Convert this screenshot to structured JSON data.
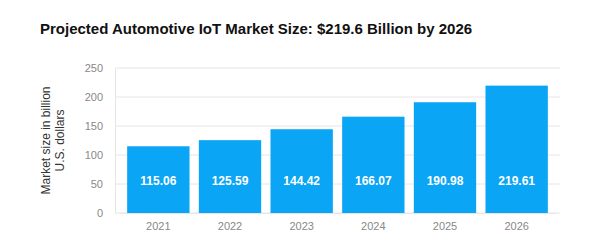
{
  "chart_data": {
    "type": "bar",
    "title": "Projected Automotive IoT Market Size: $219.6 Billion by 2026",
    "y_label": "Market size in billion\nU.S. dollars",
    "categories": [
      "2021",
      "2022",
      "2023",
      "2024",
      "2025",
      "2026"
    ],
    "values": [
      115.06,
      125.59,
      144.42,
      166.07,
      190.98,
      219.61
    ],
    "color": "#0aa5f5",
    "ylim": [
      0,
      250
    ],
    "yticks": [
      0,
      50,
      100,
      150,
      200,
      250
    ],
    "grid": true,
    "data_labels": true
  }
}
